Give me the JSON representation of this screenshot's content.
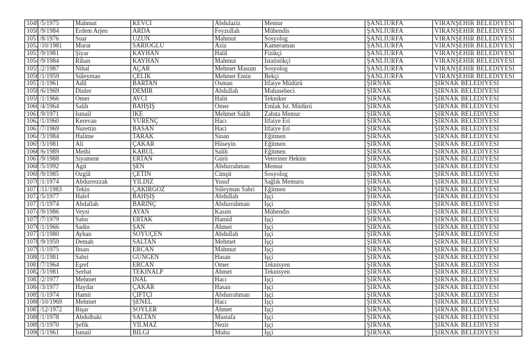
{
  "rows": [
    [
      "1049",
      "/5/1975",
      "Mahmut",
      "KEVCİ",
      "Abdulaziz",
      "Memur",
      "ŞANLIURFA",
      "VİRANŞEHİR BELEDİYESİ"
    ],
    [
      "1050",
      "/9/1984",
      "Erdem Arjen",
      "ARDA",
      "Feyzullah",
      "Mühendis",
      "ŞANLIURFA",
      "VİRANŞEHİR BELEDİYESİ"
    ],
    [
      "1051",
      "/8/1976",
      "Suar",
      "UZUN",
      "Mahmut",
      "Sosyolog",
      "ŞANLIURFA",
      "VİRANŞEHİR BELEDİYESİ"
    ],
    [
      "1052",
      "/10/1981",
      "Murat",
      "SARIOĞLU",
      "Aziz",
      "Kameraman",
      "ŞANLIURFA",
      "VİRANŞEHİR BELEDİYESİ"
    ],
    [
      "1053",
      "/9/1981",
      "Şiyar",
      "KAYHAN",
      "Halil",
      "Fizikçi",
      "ŞANLIURFA",
      "VİRANŞEHİR BELEDİYESİ"
    ],
    [
      "1054",
      "/9/1984",
      "Rihan",
      "KAYHAN",
      "Mahmut",
      "İstatistikçi",
      "ŞANLIURFA",
      "VİRANŞEHİR BELEDİYESİ"
    ],
    [
      "1055",
      "/2/1987",
      "Nihal",
      "AÇAR",
      "Mehmet Masum",
      "Sosyolog",
      "ŞANLIURFA",
      "VİRANŞEHİR BELEDİYESİ"
    ],
    [
      "1056",
      "/1/1959",
      "Süleyman",
      "ÇELİK",
      "Mehmet Emin",
      "Bekçi",
      "ŞANLIURFA",
      "VİRANŞEHİR BELEDİYESİ"
    ],
    [
      "1057",
      "/1/1961",
      "Adil",
      "BARTAN",
      "Osman",
      "İtfaiye Müdürü",
      "ŞIRNAK",
      "ŞIRNAK BELEDİYESİ"
    ],
    [
      "1058",
      "/6/1969",
      "Dinler",
      "DEMİR",
      "Abdullah",
      "Muhasebeci",
      "ŞIRNAK",
      "ŞIRNAK BELEDİYESİ"
    ],
    [
      "1059",
      "/1/1966",
      "Ömer",
      "AVCI",
      "Halit",
      "Tekniker",
      "ŞIRNAK",
      "ŞIRNAK BELEDİYESİ"
    ],
    [
      "1060",
      "/4/1964",
      "Salih",
      "BAHŞİŞ",
      "Ömer",
      "Emlak İst. Müdürü",
      "ŞIRNAK",
      "ŞIRNAK BELEDİYESİ"
    ],
    [
      "1061",
      "/9/1971",
      "İsmail",
      "IKE",
      "Mehmet Salih",
      "Zabıta Memur",
      "ŞIRNAK",
      "ŞIRNAK BELEDİYESİ"
    ],
    [
      "1062",
      "/1/1960",
      "Kerevan",
      "YÜRENÇ",
      "Hacı",
      "İtfaiye Eri",
      "ŞIRNAK",
      "ŞIRNAK BELEDİYESİ"
    ],
    [
      "1063",
      "/7/1969",
      "Nurettin",
      "BASAN",
      "Haci",
      "İtfaiye Eri",
      "ŞIRNAK",
      "ŞIRNAK BELEDİYESİ"
    ],
    [
      "1064",
      "/3/1984",
      "Halime",
      "TARAK",
      "Sinan",
      "Eğitmen",
      "ŞIRNAK",
      "ŞIRNAK BELEDİYESİ"
    ],
    [
      "1065",
      "/3/1981",
      "Ali",
      "ÇAKAR",
      "Hüseyin",
      "Eğitmen",
      "ŞIRNAK",
      "ŞIRNAK BELEDİYESİ"
    ],
    [
      "1066",
      "/6/1989",
      "Methi",
      "KABUL",
      "Salih",
      "Eğitmen",
      "ŞIRNAK",
      "ŞIRNAK BELEDİYESİ"
    ],
    [
      "1067",
      "/9/1988",
      "Siyament",
      "ERTAN",
      "Gürü",
      "Veteriner Hekim",
      "ŞIRNAK",
      "ŞIRNAK BELEDİYESİ"
    ],
    [
      "1068",
      "/5/1992",
      "Agit",
      "ŞEN",
      "Abdurrahman",
      "Memur",
      "ŞIRNAK",
      "ŞIRNAK BELEDİYESİ"
    ],
    [
      "1069",
      "/9/1985",
      "Özgül",
      "ÇETİN",
      "Cimşit",
      "Sosyolog",
      "ŞIRNAK",
      "ŞIRNAK BELEDİYESİ"
    ],
    [
      "1070",
      "/1/1974",
      "Abdurrezzak",
      "YILDIZ",
      "Yusuf",
      "Sağlık Memuru",
      "ŞIRNAK",
      "ŞIRNAK BELEDİYESİ"
    ],
    [
      "1071",
      "/11/1983",
      "Tekin",
      "ÇAKIRGÖZ",
      "Süleyman Sabri",
      "Eğitmen",
      "ŞIRNAK",
      "ŞIRNAK BELEDİYESİ"
    ],
    [
      "1072",
      "/5/1977",
      "Halef",
      "BAHŞİŞ",
      "Abdullah",
      "İşçi",
      "ŞIRNAK",
      "ŞIRNAK BELEDİYESİ"
    ],
    [
      "1073",
      "/1/1974",
      "Abdallah",
      "BARINÇ",
      "Abdurrahman",
      "İşçi",
      "ŞIRNAK",
      "ŞIRNAK BELEDİYESİ"
    ],
    [
      "1074",
      "/9/1986",
      "Veysi",
      "AYAN",
      "Kasım",
      "Mühendis",
      "ŞIRNAK",
      "ŞIRNAK BELEDİYESİ"
    ],
    [
      "1075",
      "/7/1979",
      "Sabır",
      "ERTAK",
      "Hamid",
      "İşçi",
      "ŞIRNAK",
      "ŞIRNAK BELEDİYESİ"
    ],
    [
      "1076",
      "/1/1966",
      "Sadin",
      "ŞAN",
      "Ahmet",
      "İşçi",
      "ŞIRNAK",
      "ŞIRNAK BELEDİYESİ"
    ],
    [
      "1077",
      "/1/1980",
      "Ayhan",
      "SÖYÜÇEN",
      "Abdullah",
      "İşçi",
      "ŞIRNAK",
      "ŞIRNAK BELEDİYESİ"
    ],
    [
      "1078",
      "/9/1959",
      "Demah",
      "SALTAN",
      "Mehmet",
      "İşçi",
      "ŞIRNAK",
      "ŞIRNAK BELEDİYESİ"
    ],
    [
      "1079",
      "/1/1975",
      "İhsan",
      "ERCAN",
      "Mahmut",
      "İşçi",
      "ŞIRNAK",
      "ŞIRNAK BELEDİYESİ"
    ],
    [
      "1080",
      "/1/1981",
      "Sabri",
      "GÜNGEN",
      "Hasan",
      "İşçi",
      "ŞIRNAK",
      "ŞIRNAK BELEDİYESİ"
    ],
    [
      "1081",
      "/7/1964",
      "Eşref",
      "ERCAN",
      "Ömer",
      "Teknisyen",
      "ŞIRNAK",
      "ŞIRNAK BELEDİYESİ"
    ],
    [
      "1082",
      "/3/1981",
      "Serhat",
      "TEKİNALP",
      "Ahmet",
      "Teknisyen",
      "ŞIRNAK",
      "ŞIRNAK BELEDİYESİ"
    ],
    [
      "1083",
      "/2/1977",
      "Mehmet",
      "İNAL",
      "Hacı",
      "İşçi",
      "ŞIRNAK",
      "ŞIRNAK BELEDİYESİ"
    ],
    [
      "1084",
      "/3/1977",
      "Haydar",
      "ÇAKAR",
      "Hasan",
      "İşçi",
      "ŞIRNAK",
      "ŞIRNAK BELEDİYESİ"
    ],
    [
      "1085",
      "/1/1974",
      "Hamit",
      "ÇİFTÇİ",
      "Abdurrahman",
      "İşçi",
      "ŞIRNAK",
      "ŞIRNAK BELEDİYESİ"
    ],
    [
      "1086",
      "/10/1969",
      "Mehmet",
      "ŞENEL",
      "Hacı",
      "İşçi",
      "ŞIRNAK",
      "ŞIRNAK BELEDİYESİ"
    ],
    [
      "1087",
      "/12/1972",
      "Bişar",
      "SÖYLER",
      "Ahmet",
      "İşçi",
      "ŞIRNAK",
      "ŞIRNAK BELEDİYESİ"
    ],
    [
      "1088",
      "/1/1978",
      "Abdulbaki",
      "SALTAN",
      "Mustafa",
      "İşçi",
      "ŞIRNAK",
      "ŞIRNAK BELEDİYESİ"
    ],
    [
      "1089",
      "/1/1970",
      "Şefik",
      "YILMAZ",
      "Nezir",
      "İşçi",
      "ŞIRNAK",
      "ŞIRNAK BELEDİYESİ"
    ],
    [
      "1090",
      "/1/1961",
      "İsmail",
      "BİLGİ",
      "Muhu",
      "İşçi",
      "ŞIRNAK",
      "ŞIRNAK BELEDİYESİ"
    ]
  ]
}
